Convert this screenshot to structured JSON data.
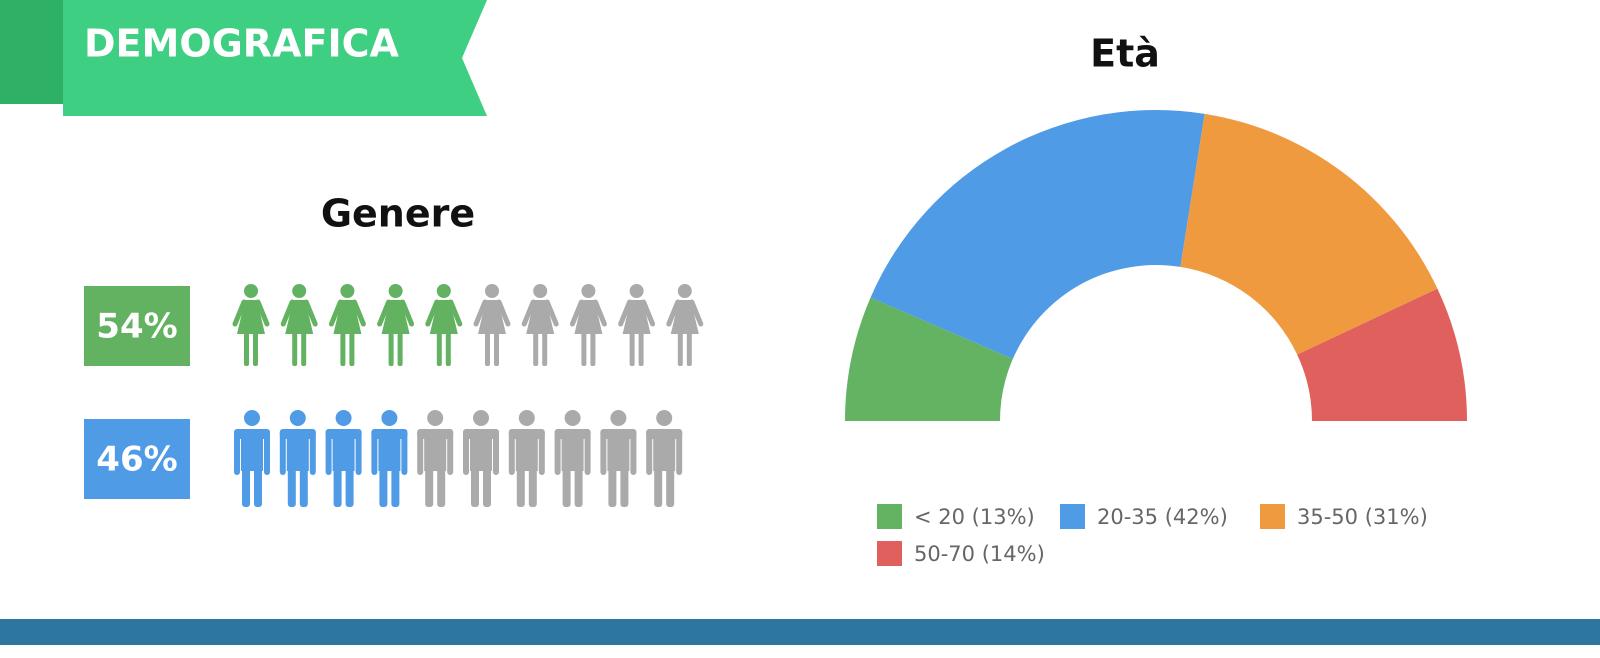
{
  "header": {
    "title": "DEMOGRAFICA"
  },
  "chart_data": [
    {
      "type": "pictogram",
      "title": "Genere",
      "values": [
        54,
        46
      ],
      "value_labels": [
        "54%",
        "46%"
      ],
      "colors": [
        "#62b262",
        "#4f9be6"
      ],
      "empty_color": "#aaaaaa"
    },
    {
      "type": "pie",
      "half_donut": true,
      "title": "Età",
      "categories": [
        "< 20 (13%)",
        "20-35 (42%)",
        "35-50 (31%)",
        "50-70 (14%)"
      ],
      "values": [
        13,
        42,
        31,
        14
      ],
      "colors": [
        "#63b363",
        "#4f9be6",
        "#f09a40",
        "#e0605e"
      ]
    }
  ]
}
